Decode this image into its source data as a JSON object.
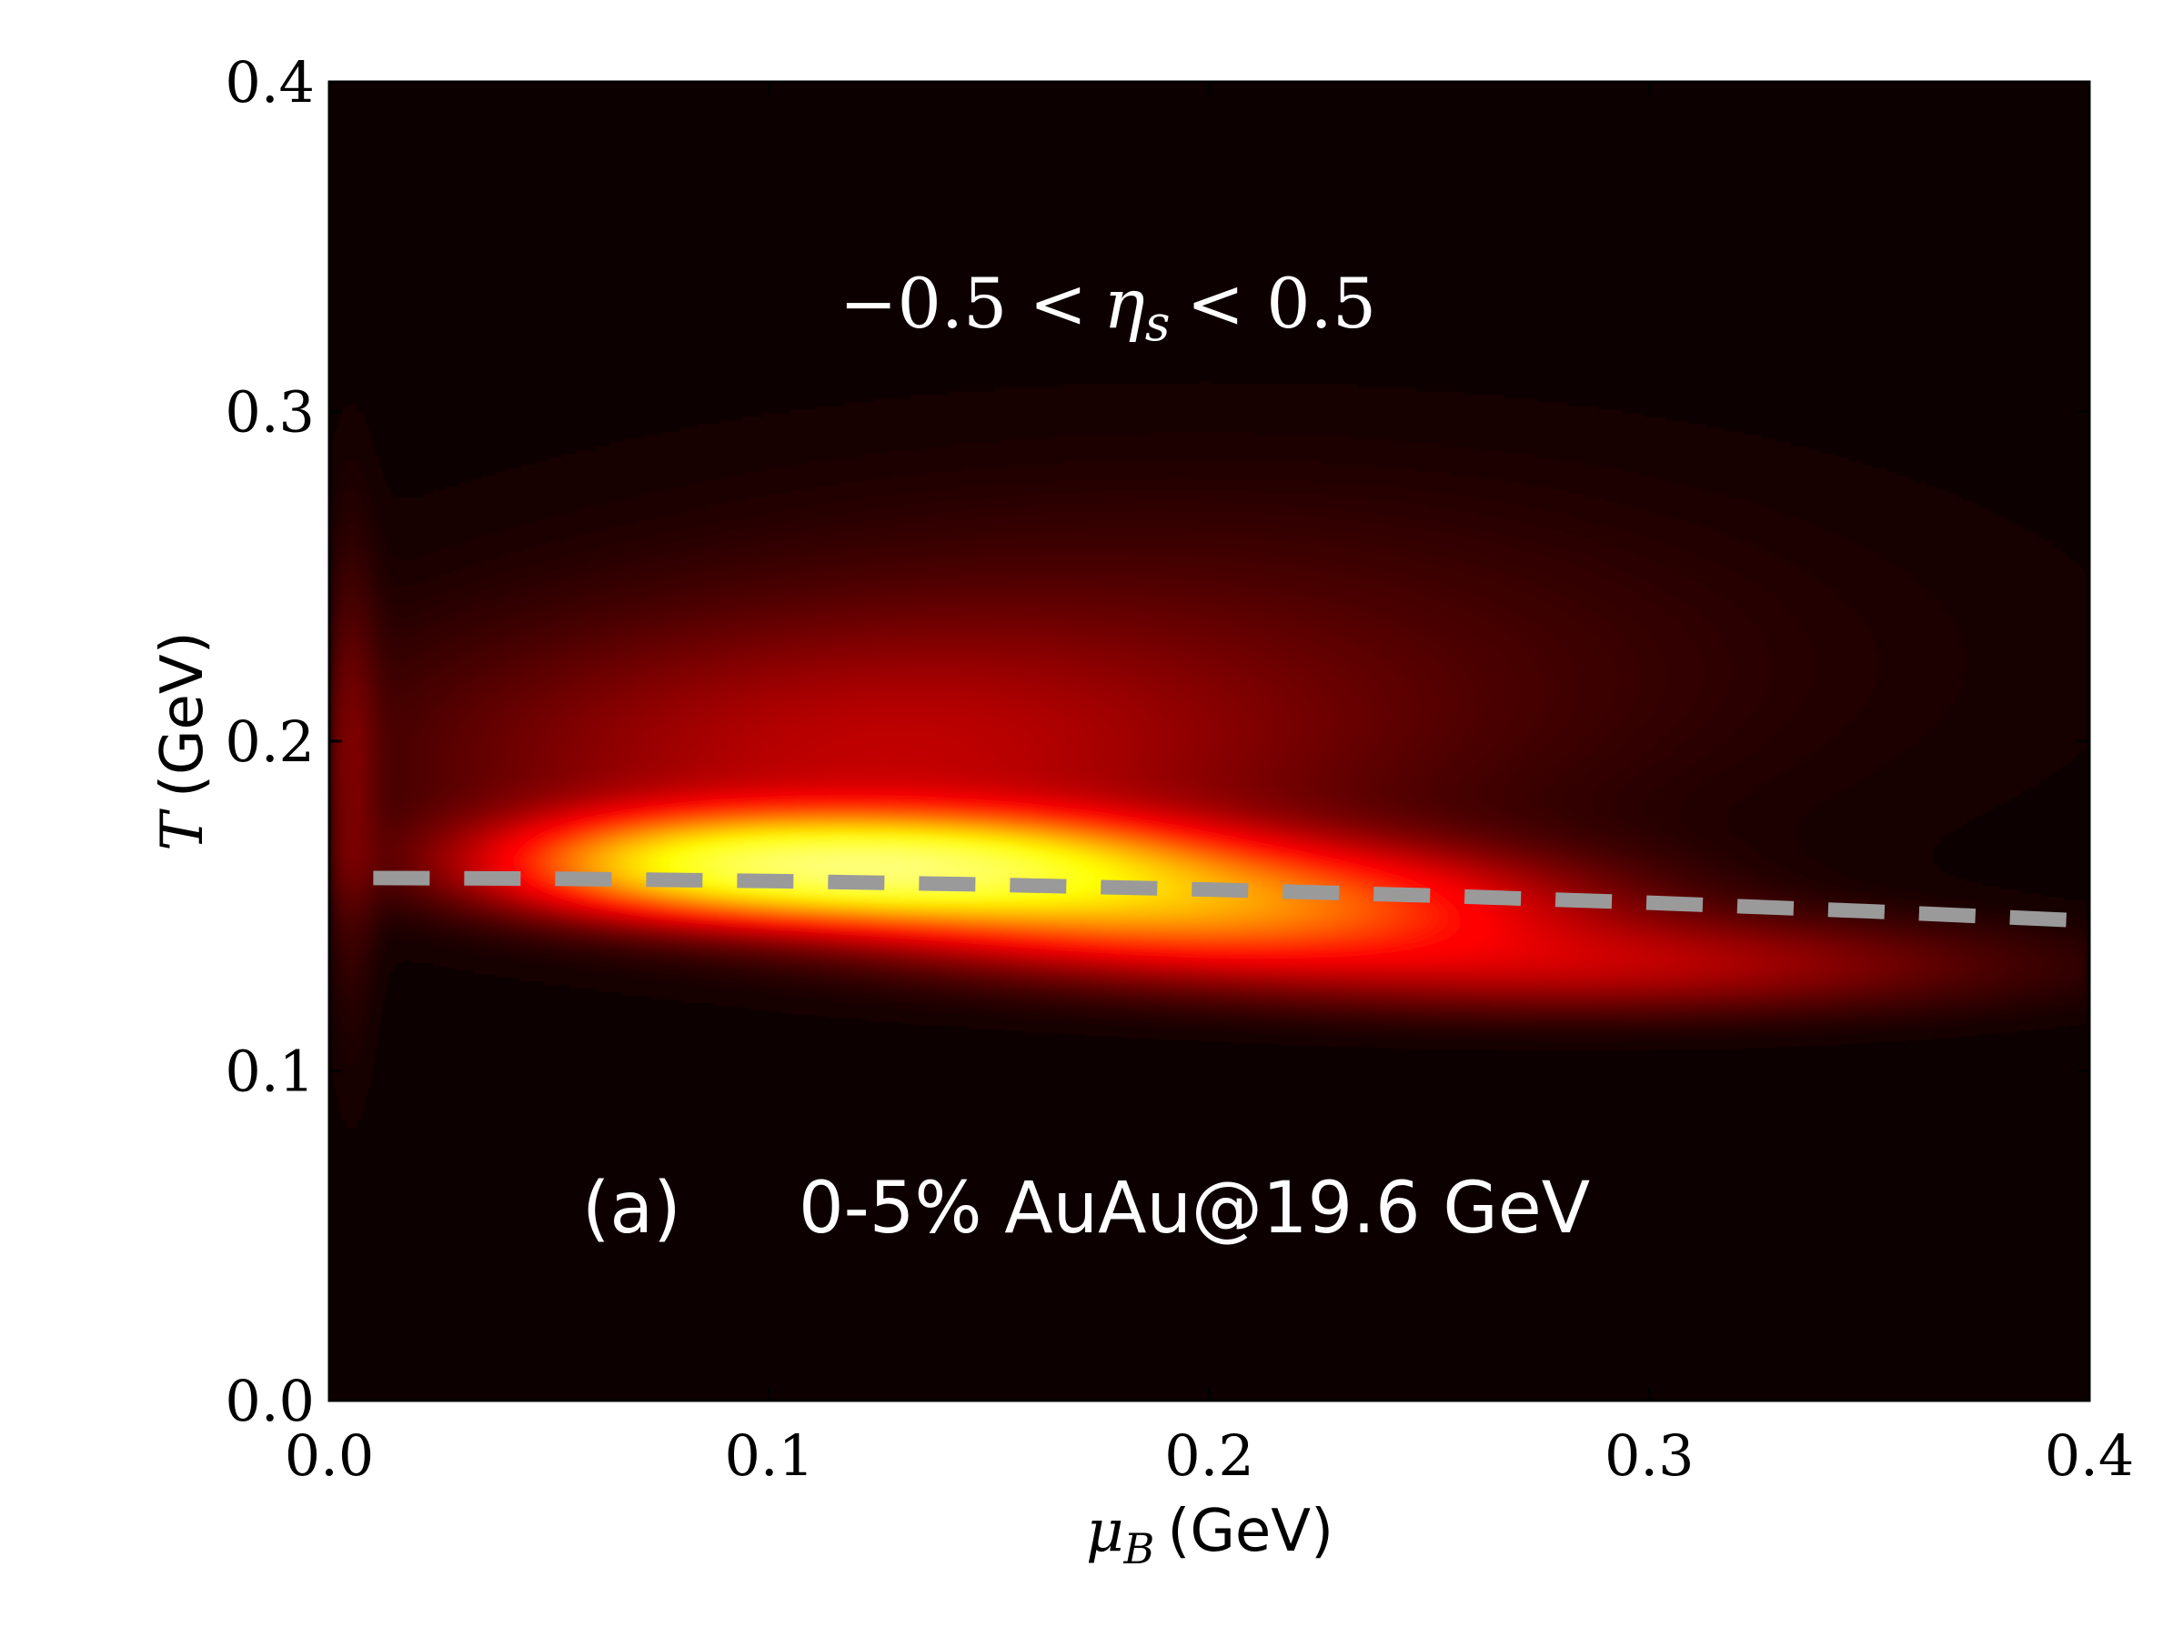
{
  "chart_data": {
    "type": "heatmap",
    "xlabel": {
      "symbol": "μ",
      "subscript": "B",
      "unit": "(GeV)"
    },
    "ylabel": {
      "symbol": "T",
      "unit": "(GeV)"
    },
    "xlim": [
      0.0,
      0.4
    ],
    "ylim": [
      0.0,
      0.4
    ],
    "xticks": [
      "0.0",
      "0.1",
      "0.2",
      "0.3",
      "0.4"
    ],
    "yticks": [
      "0.0",
      "0.1",
      "0.2",
      "0.3",
      "0.4"
    ],
    "grid": false,
    "colormap": "hot",
    "background": "#0a0000",
    "annotations": {
      "eta_range": {
        "left": "−0.5 <",
        "symbol": "η",
        "subscript": "s",
        "right": "< 0.5"
      },
      "panel_label": "(a)",
      "system": "0-5% AuAu@19.6 GeV"
    },
    "density_blobs": [
      {
        "mu_B": 0.13,
        "T": 0.162,
        "sigma_mu": 0.04,
        "sigma_T": 0.01,
        "weight": 1.0
      },
      {
        "mu_B": 0.08,
        "T": 0.163,
        "sigma_mu": 0.03,
        "sigma_T": 0.01,
        "weight": 0.45
      },
      {
        "mu_B": 0.2,
        "T": 0.15,
        "sigma_mu": 0.05,
        "sigma_T": 0.012,
        "weight": 0.55
      },
      {
        "mu_B": 0.29,
        "T": 0.132,
        "sigma_mu": 0.06,
        "sigma_T": 0.01,
        "weight": 0.2
      },
      {
        "mu_B": 0.12,
        "T": 0.195,
        "sigma_mu": 0.07,
        "sigma_T": 0.028,
        "weight": 0.18
      },
      {
        "mu_B": 0.2,
        "T": 0.225,
        "sigma_mu": 0.1,
        "sigma_T": 0.04,
        "weight": 0.07
      },
      {
        "mu_B": 0.005,
        "T": 0.19,
        "sigma_mu": 0.004,
        "sigma_T": 0.05,
        "weight": 0.08
      }
    ],
    "series": [
      {
        "style": "dashed",
        "color": "#9a9a9a",
        "x": [
          0.01,
          0.05,
          0.1,
          0.15,
          0.2,
          0.25,
          0.3,
          0.35,
          0.4
        ],
        "y": [
          0.1585,
          0.1583,
          0.1576,
          0.1565,
          0.155,
          0.1532,
          0.151,
          0.1484,
          0.1455
        ]
      }
    ]
  }
}
